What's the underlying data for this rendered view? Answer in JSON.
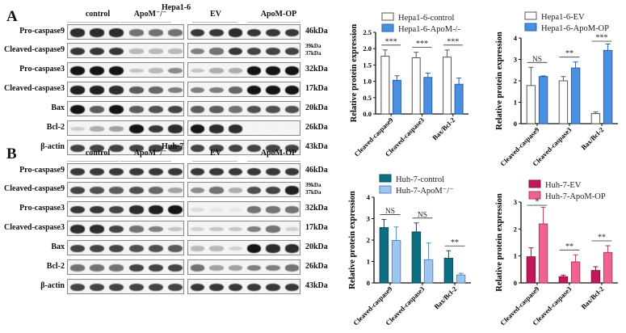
{
  "panels": [
    {
      "letter": "A",
      "cell_line": "Hepa1-6",
      "left_blot": {
        "groups": [
          "control",
          "ApoM⁻/⁻"
        ]
      },
      "right_blot": {
        "groups": [
          "EV",
          "ApoM-OP"
        ]
      },
      "rows": [
        {
          "label": "Pro-caspase9",
          "kda": "46kDa"
        },
        {
          "label": "Cleaved-caspase9",
          "kda": "39kDa / 37kDa",
          "kda_top": "39kDa",
          "kda_bottom": "37kDa"
        },
        {
          "label": "Pro-caspase3",
          "kda": "32kDa"
        },
        {
          "label": "Cleaved-caspase3",
          "kda": "17kDa"
        },
        {
          "label": "Bax",
          "kda": "20kDa"
        },
        {
          "label": "Bcl-2",
          "kda": "26kDa"
        },
        {
          "label": "β-actin",
          "kda": "43kDa"
        }
      ],
      "left_intensity": [
        [
          0.9,
          0.9,
          0.9,
          0.6,
          0.6,
          0.6
        ],
        [
          0.85,
          0.85,
          0.85,
          0.3,
          0.3,
          0.3
        ],
        [
          1,
          1,
          1,
          0.25,
          0.3,
          0.5
        ],
        [
          0.95,
          0.95,
          0.9,
          0.7,
          0.65,
          0.55
        ],
        [
          1,
          0.7,
          1,
          0.7,
          0.75,
          0.8
        ],
        [
          0.2,
          0.35,
          0.4,
          1,
          0.85,
          0.9
        ],
        [
          0.8,
          0.8,
          0.8,
          0.8,
          0.8,
          0.8
        ]
      ],
      "right_intensity": [
        [
          0.85,
          0.85,
          0.9,
          0.85,
          0.85,
          0.85
        ],
        [
          0.55,
          0.6,
          0.85,
          0.8,
          0.8,
          0.8
        ],
        [
          0.25,
          0.35,
          0.35,
          1,
          1,
          1
        ],
        [
          0.55,
          0.55,
          0.65,
          1,
          1,
          1
        ],
        [
          0.7,
          0.7,
          0.6,
          0.75,
          0.75,
          0.75
        ],
        [
          1,
          0.9,
          0.9,
          0.05,
          0.05,
          0.05
        ],
        [
          0.8,
          0.8,
          0.8,
          0.8,
          0.8,
          0.8
        ]
      ]
    },
    {
      "letter": "B",
      "cell_line": "Huh-7",
      "left_blot": {
        "groups": [
          "control",
          "ApoM⁻/⁻"
        ]
      },
      "right_blot": {
        "groups": [
          "EV",
          "ApoM-OP"
        ]
      },
      "rows": [
        {
          "label": "Pro-caspase9",
          "kda": "46kDa"
        },
        {
          "label": "Cleaved-caspase9",
          "kda": "39kDa / 37kDa",
          "kda_top": "39kDa",
          "kda_bottom": "37kDa"
        },
        {
          "label": "Pro-caspase3",
          "kda": "32kDa"
        },
        {
          "label": "Cleaved-caspase3",
          "kda": "17kDa"
        },
        {
          "label": "Bax",
          "kda": "20kDa"
        },
        {
          "label": "Bcl-2",
          "kda": "26kDa"
        },
        {
          "label": "β-actin",
          "kda": "43kDa"
        }
      ],
      "left_intensity": [
        [
          0.85,
          0.85,
          0.85,
          0.85,
          0.85,
          0.85
        ],
        [
          0.8,
          0.75,
          0.7,
          0.75,
          0.65,
          0.4
        ],
        [
          0.85,
          0.85,
          0.8,
          0.9,
          0.95,
          1
        ],
        [
          0.9,
          0.9,
          0.8,
          0.6,
          0.55,
          0.25
        ],
        [
          0.8,
          0.8,
          0.8,
          0.75,
          0.75,
          0.7
        ],
        [
          0.6,
          0.6,
          0.6,
          0.8,
          0.8,
          0.8
        ],
        [
          0.8,
          0.8,
          0.8,
          0.8,
          0.8,
          0.8
        ]
      ],
      "right_intensity": [
        [
          0.85,
          0.85,
          0.85,
          0.85,
          0.85,
          0.85
        ],
        [
          0.5,
          0.6,
          0.35,
          0.75,
          0.8,
          0.95
        ],
        [
          0.15,
          0.1,
          0.1,
          0.6,
          0.6,
          0.6
        ],
        [
          0.2,
          0.25,
          0.25,
          0.55,
          0.6,
          0.2
        ],
        [
          0.3,
          0.3,
          0.2,
          1,
          0.9,
          0.9
        ],
        [
          0.6,
          0.4,
          0.4,
          0.55,
          0.55,
          0.6
        ],
        [
          0.85,
          0.85,
          0.85,
          0.85,
          0.85,
          0.85
        ]
      ]
    }
  ],
  "chart_data": [
    {
      "id": "A-left",
      "type": "bar",
      "title": "",
      "ylabel": "Relative protein expression",
      "xlabel": "",
      "categories": [
        "Cleaved-caspase9",
        "Cleaved-caspase3",
        "Bax/Bcl-2"
      ],
      "ylim": [
        0,
        2.5
      ],
      "yticks": [
        0.0,
        0.5,
        1.0,
        1.5,
        2.0,
        2.5
      ],
      "ytick_labels": [
        "0.0",
        "0.5",
        "1.0",
        "1.5",
        "2.0",
        "2.5"
      ],
      "grid": false,
      "legend_position": "top",
      "series": [
        {
          "name": "Hepa1-6-control",
          "values": [
            1.77,
            1.72,
            1.74
          ],
          "errors": [
            0.19,
            0.17,
            0.22
          ],
          "fill": "#ffffff",
          "stroke": "#555555"
        },
        {
          "name": "Hepa1-6-ApoM-/-",
          "values": [
            1.03,
            1.12,
            0.91
          ],
          "errors": [
            0.14,
            0.13,
            0.19
          ],
          "fill": "#4a90e2",
          "stroke": "#2a5fa8"
        }
      ],
      "significance": [
        "***",
        "***",
        "***"
      ]
    },
    {
      "id": "A-right",
      "type": "bar",
      "title": "",
      "ylabel": "Relative protein expression",
      "xlabel": "",
      "categories": [
        "Cleaved-caspase9",
        "Cleaved-caspase3",
        "Bax/Bcl-2"
      ],
      "ylim": [
        0,
        4
      ],
      "yticks": [
        0,
        1,
        2,
        3,
        4
      ],
      "ytick_labels": [
        "0",
        "1",
        "2",
        "3",
        "4"
      ],
      "grid": false,
      "legend_position": "top",
      "series": [
        {
          "name": "Hepa1-6-EV",
          "values": [
            1.78,
            2.0,
            0.47
          ],
          "errors": [
            0.85,
            0.2,
            0.08
          ],
          "fill": "#ffffff",
          "stroke": "#555555"
        },
        {
          "name": "Hepa1-6-ApoM-OP",
          "values": [
            2.2,
            2.6,
            3.42
          ],
          "errors": [
            0.03,
            0.28,
            0.3
          ],
          "fill": "#4a90e2",
          "stroke": "#2a5fa8"
        }
      ],
      "significance": [
        "NS",
        "**",
        "***"
      ]
    },
    {
      "id": "B-left",
      "type": "bar",
      "title": "",
      "ylabel": "Relative protein expression",
      "xlabel": "",
      "categories": [
        "Cleaved-caspase9",
        "Cleaved-caspase3",
        "Bax/Bcl-2"
      ],
      "ylim": [
        0,
        4
      ],
      "yticks": [
        0,
        1,
        2,
        3,
        4
      ],
      "ytick_labels": [
        "0",
        "1",
        "2",
        "3",
        "4"
      ],
      "grid": false,
      "legend_position": "top",
      "series": [
        {
          "name": "Huh-7-control",
          "values": [
            2.58,
            2.38,
            1.15
          ],
          "errors": [
            0.38,
            0.42,
            0.35
          ],
          "fill": "#0e6f82",
          "stroke": "#0a4f5c"
        },
        {
          "name": "Huh-7-ApoM⁻/⁻",
          "values": [
            1.98,
            1.08,
            0.37
          ],
          "errors": [
            0.63,
            0.78,
            0.08
          ],
          "fill": "#9cc6f2",
          "stroke": "#5a86b8"
        }
      ],
      "significance": [
        "NS",
        "NS",
        "**"
      ]
    },
    {
      "id": "B-right",
      "type": "bar",
      "title": "",
      "ylabel": "Relative protein expression",
      "xlabel": "",
      "categories": [
        "Cleaved-caspase9",
        "Cleaved-caspase3",
        "Bax/Bcl-2"
      ],
      "ylim": [
        0,
        3
      ],
      "yticks": [
        0,
        1,
        2,
        3
      ],
      "ytick_labels": [
        "0",
        "1",
        "2",
        "3"
      ],
      "grid": false,
      "legend_position": "top",
      "series": [
        {
          "name": "Huh-7-EV",
          "values": [
            0.97,
            0.23,
            0.46
          ],
          "errors": [
            0.33,
            0.06,
            0.14
          ],
          "fill": "#c2185b",
          "stroke": "#8a1042"
        },
        {
          "name": "Huh-7-ApoM-OP",
          "values": [
            2.19,
            0.78,
            1.13
          ],
          "errors": [
            0.62,
            0.26,
            0.25
          ],
          "fill": "#f06292",
          "stroke": "#b03a66"
        }
      ],
      "significance": [
        "*",
        "**",
        "**"
      ]
    }
  ]
}
